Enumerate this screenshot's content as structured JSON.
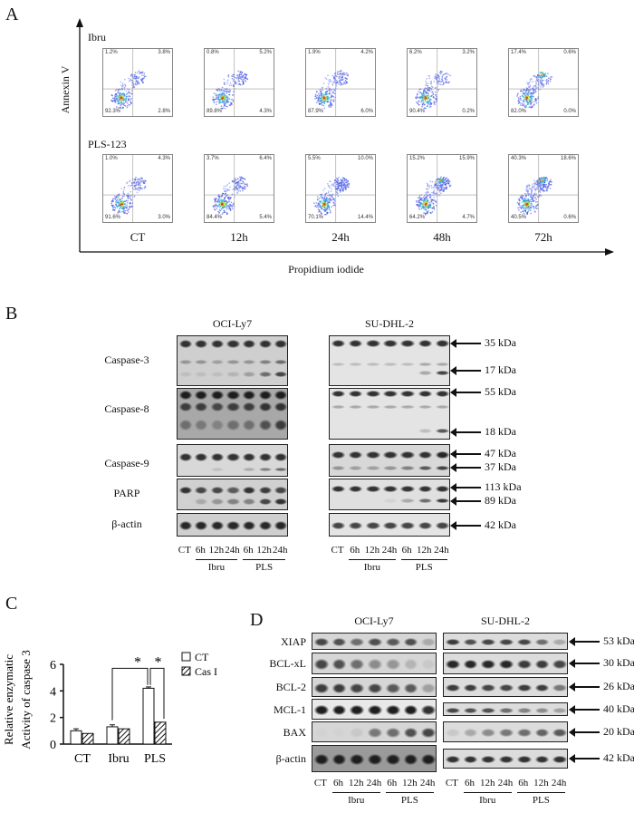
{
  "panel_a": {
    "label": "A",
    "y_axis": "Annexin V",
    "x_axis": "Propidium iodide",
    "timepoints": [
      "CT",
      "12h",
      "24h",
      "48h",
      "72h"
    ],
    "rows": [
      {
        "name": "Ibru",
        "plots": [
          {
            "ul": "1.2%",
            "ur": "3.8%",
            "ll": "92.3%",
            "lr": "2.8%"
          },
          {
            "ul": "0.8%",
            "ur": "5.2%",
            "ll": "89.8%",
            "lr": "4.3%"
          },
          {
            "ul": "1.9%",
            "ur": "4.2%",
            "ll": "87.9%",
            "lr": "6.0%"
          },
          {
            "ul": "6.2%",
            "ur": "3.2%",
            "ll": "90.4%",
            "lr": "0.2%"
          },
          {
            "ul": "17.4%",
            "ur": "0.6%",
            "ll": "82.0%",
            "lr": "0.0%"
          }
        ]
      },
      {
        "name": "PLS-123",
        "plots": [
          {
            "ul": "1.0%",
            "ur": "4.3%",
            "ll": "91.6%",
            "lr": "3.0%"
          },
          {
            "ul": "3.7%",
            "ur": "6.4%",
            "ll": "84.4%",
            "lr": "5.4%"
          },
          {
            "ul": "5.5%",
            "ur": "10.0%",
            "ll": "70.1%",
            "lr": "14.4%"
          },
          {
            "ul": "15.2%",
            "ur": "15.9%",
            "ll": "64.2%",
            "lr": "4.7%"
          },
          {
            "ul": "40.3%",
            "ur": "18.6%",
            "ll": "40.5%",
            "lr": "0.6%"
          }
        ]
      }
    ]
  },
  "panel_b": {
    "label": "B",
    "cell_lines": [
      "OCI-Ly7",
      "SU-DHL-2"
    ],
    "lanes": [
      "CT",
      "6h",
      "12h",
      "24h",
      "6h",
      "12h",
      "24h"
    ],
    "groups": [
      "Ibru",
      "PLS"
    ],
    "rows": [
      {
        "name": "Caspase-3",
        "markers": [
          "35 kDa",
          "17 kDa"
        ]
      },
      {
        "name": "Caspase-8",
        "markers": [
          "55 kDa",
          "18 kDa"
        ]
      },
      {
        "name": "Caspase-9",
        "markers": [
          "47 kDa",
          "37 kDa"
        ]
      },
      {
        "name": "PARP",
        "markers": [
          "113 kDa",
          "89 kDa"
        ]
      },
      {
        "name": "β-actin",
        "markers": [
          "42 kDa"
        ]
      }
    ]
  },
  "panel_c": {
    "label": "C"
  },
  "chart_data": {
    "type": "bar",
    "categories": [
      "CT",
      "Ibru",
      "PLS"
    ],
    "series": [
      {
        "name": "CT",
        "values": [
          1.0,
          1.3,
          4.2
        ],
        "errors": [
          0.15,
          0.15,
          0.1
        ],
        "fill": "#ffffff"
      },
      {
        "name": "Cas I",
        "values": [
          0.8,
          1.15,
          1.65
        ],
        "errors": [
          0,
          0,
          0
        ],
        "fill": "hatched"
      }
    ],
    "ylabel": [
      "Relative enzymatic",
      "Activity of caspase 3"
    ],
    "ylim": [
      0,
      6
    ],
    "yticks": [
      0,
      2,
      4,
      6
    ],
    "legend": "top-right",
    "significance": [
      "*",
      "*"
    ]
  },
  "panel_d": {
    "label": "D",
    "cell_lines": [
      "OCI-Ly7",
      "SU-DHL-2"
    ],
    "lanes": [
      "CT",
      "6h",
      "12h",
      "24h",
      "6h",
      "12h",
      "24h"
    ],
    "groups": [
      "Ibru",
      "PLS"
    ],
    "rows": [
      {
        "name": "XIAP",
        "marker": "53 kDa"
      },
      {
        "name": "BCL-xL",
        "marker": "30 kDa"
      },
      {
        "name": "BCL-2",
        "marker": "26 kDa"
      },
      {
        "name": "MCL-1",
        "marker": "40 kDa"
      },
      {
        "name": "BAX",
        "marker": "20 kDa"
      },
      {
        "name": "β-actin",
        "marker": "42 kDa"
      }
    ]
  }
}
